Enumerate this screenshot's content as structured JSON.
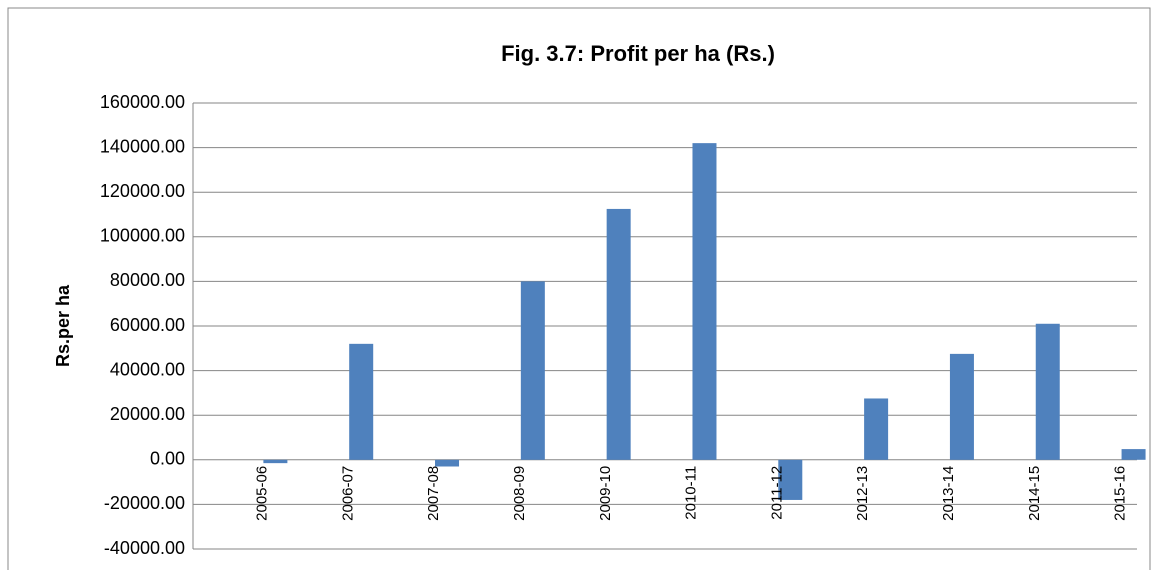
{
  "chart_data": {
    "type": "bar",
    "title": "Fig. 3.7: Profit per ha (Rs.)",
    "y_label": "Rs.per ha",
    "categories": [
      "2005-06",
      "2006-07",
      "2007-08",
      "2008-09",
      "2009-10",
      "2010-11",
      "2011-12",
      "2012-13",
      "2013-14",
      "2014-15",
      "2015-16"
    ],
    "values": [
      -1500,
      52000,
      -3000,
      80000,
      112500,
      142000,
      -18000,
      27500,
      47500,
      61000,
      4800
    ],
    "color": "#4f81bd",
    "ylim": [
      -40000,
      160000
    ],
    "yticks": [
      {
        "value": -40000,
        "label": "-40000.00"
      },
      {
        "value": -20000,
        "label": "-20000.00"
      },
      {
        "value": 0,
        "label": "0.00"
      },
      {
        "value": 20000,
        "label": "20000.00"
      },
      {
        "value": 40000,
        "label": "40000.00"
      },
      {
        "value": 60000,
        "label": "60000.00"
      },
      {
        "value": 80000,
        "label": "80000.00"
      },
      {
        "value": 100000,
        "label": "100000.00"
      },
      {
        "value": 120000,
        "label": "120000.00"
      },
      {
        "value": 140000,
        "label": "140000.00"
      },
      {
        "value": 160000,
        "label": "160000.00"
      }
    ],
    "grid": true
  }
}
